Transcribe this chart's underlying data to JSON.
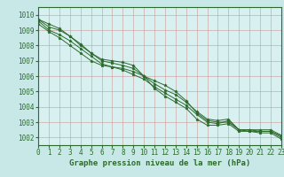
{
  "title": "Graphe pression niveau de la mer (hPa)",
  "background_color": "#c8e8e8",
  "plot_bg_color": "#d8f0f0",
  "grid_color": "#aaaaaa",
  "line_color": "#2d6a2d",
  "marker": "*",
  "xlim": [
    0,
    23
  ],
  "ylim": [
    1001.5,
    1010.5
  ],
  "yticks": [
    1002,
    1003,
    1004,
    1005,
    1006,
    1007,
    1008,
    1009,
    1010
  ],
  "xticks": [
    0,
    1,
    2,
    3,
    4,
    5,
    6,
    7,
    8,
    9,
    10,
    11,
    12,
    13,
    14,
    15,
    16,
    17,
    18,
    19,
    20,
    21,
    22,
    23
  ],
  "series": [
    [
      1009.7,
      1009.2,
      1009.0,
      1008.6,
      1008.1,
      1007.5,
      1007.1,
      1007.0,
      1006.9,
      1006.7,
      1006.0,
      1005.7,
      1005.4,
      1005.0,
      1004.4,
      1003.6,
      1003.1,
      1003.0,
      1003.0,
      1002.5,
      1002.4,
      1002.4,
      1002.4,
      1002.1
    ],
    [
      1009.7,
      1009.4,
      1009.1,
      1008.6,
      1008.0,
      1007.5,
      1007.0,
      1006.85,
      1006.7,
      1006.5,
      1006.0,
      1005.5,
      1005.1,
      1004.8,
      1004.3,
      1003.7,
      1003.2,
      1003.1,
      1003.2,
      1002.5,
      1002.5,
      1002.5,
      1002.5,
      1002.15
    ],
    [
      1009.6,
      1009.0,
      1008.7,
      1008.3,
      1007.8,
      1007.3,
      1006.8,
      1006.6,
      1006.4,
      1006.1,
      1005.8,
      1005.3,
      1004.9,
      1004.5,
      1004.1,
      1003.5,
      1003.0,
      1002.9,
      1003.1,
      1002.5,
      1002.5,
      1002.4,
      1002.4,
      1002.0
    ],
    [
      1009.4,
      1008.9,
      1008.5,
      1008.0,
      1007.5,
      1007.0,
      1006.7,
      1006.6,
      1006.5,
      1006.3,
      1006.0,
      1005.2,
      1004.7,
      1004.3,
      1003.9,
      1003.2,
      1002.8,
      1002.8,
      1002.9,
      1002.4,
      1002.4,
      1002.3,
      1002.3,
      1001.9
    ]
  ],
  "title_fontsize": 6.5,
  "tick_fontsize": 5.5
}
